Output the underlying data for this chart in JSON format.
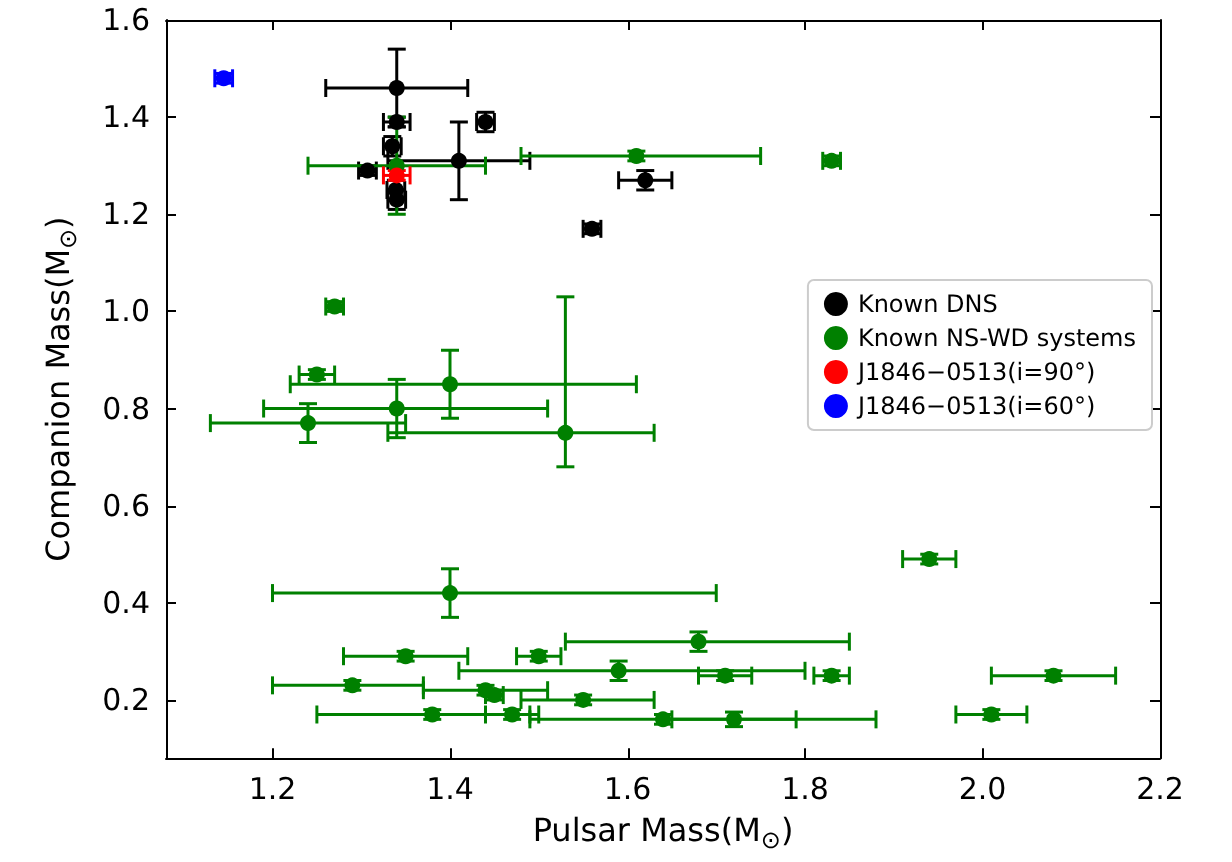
{
  "chart_data": {
    "type": "scatter",
    "xlabel": "Pulsar Mass(M$_{⊙}$)",
    "ylabel": "Companion Mass(M$_{⊙}$)",
    "xlim": [
      1.08,
      2.2
    ],
    "xticks": [
      1.2,
      1.4,
      1.6,
      1.8,
      {
        "value": 2,
        "label": "2.0"
      },
      2.2
    ],
    "ylim": [
      0.08,
      1.6
    ],
    "yticks": [
      0.2,
      0.4,
      0.6,
      0.8,
      {
        "value": 1,
        "label": "1.0"
      },
      1.2,
      1.4,
      1.6
    ],
    "grid": false,
    "legend": "right",
    "marker": "circle",
    "series": [
      {
        "name": "Known DNS",
        "color": "#000000",
        "x": [
          1.34,
          1.34,
          1.335,
          1.307,
          1.41,
          1.44,
          1.339,
          1.34,
          1.62,
          1.56
        ],
        "values": [
          1.46,
          1.39,
          1.34,
          1.29,
          1.31,
          1.39,
          1.25,
          1.23,
          1.27,
          1.17
        ],
        "xerrors": [
          0.08,
          0.015,
          0.01,
          0.01,
          0.08,
          0.01,
          0.01,
          0.01,
          0.03,
          0.01
        ],
        "errors": [
          0.08,
          0.01,
          0.02,
          0.01,
          0.08,
          0.02,
          0.02,
          0.02,
          0.02,
          0.01
        ]
      },
      {
        "name": "Known NS-WD systems",
        "color": "#008000",
        "x": [
          1.61,
          1.83,
          1.34,
          1.27,
          1.25,
          1.4,
          1.34,
          1.24,
          1.53,
          1.4,
          1.68,
          1.35,
          1.5,
          1.59,
          1.71,
          1.83,
          2.08,
          1.94,
          1.29,
          1.44,
          1.45,
          1.55,
          1.47,
          1.38,
          1.64,
          1.72,
          2.01
        ],
        "values": [
          1.32,
          1.31,
          1.3,
          1.01,
          0.87,
          0.85,
          0.8,
          0.77,
          0.75,
          0.42,
          0.32,
          0.29,
          0.29,
          0.26,
          0.25,
          0.25,
          0.25,
          0.49,
          0.23,
          0.22,
          0.21,
          0.2,
          0.17,
          0.17,
          0.16,
          0.16,
          0.17
        ],
        "xerrors": [
          [
            1.48,
            1.75
          ],
          0.01,
          0.1,
          0.01,
          [
            1.23,
            1.27
          ],
          [
            1.22,
            1.61
          ],
          [
            1.19,
            1.51
          ],
          [
            1.13,
            1.35
          ],
          [
            1.33,
            1.63
          ],
          [
            1.2,
            1.7
          ],
          [
            1.53,
            1.85
          ],
          0.07,
          0.025,
          [
            1.41,
            1.8
          ],
          0.03,
          0.02,
          0.07,
          0.03,
          [
            1.2,
            1.37
          ],
          [
            1.37,
            1.51
          ],
          0.01,
          [
            1.48,
            1.63
          ],
          0.03,
          [
            1.25,
            1.49
          ],
          [
            1.49,
            1.88
          ],
          [
            1.65,
            1.79
          ],
          0.04
        ],
        "errors": [
          0.01,
          0.01,
          0.1,
          0.01,
          0.01,
          0.07,
          0.06,
          0.04,
          [
            0.68,
            1.03
          ],
          0.05,
          0.02,
          0.01,
          0.01,
          0.02,
          0.01,
          0.01,
          0.01,
          0.01,
          0.01,
          0.01,
          0.01,
          0.01,
          0.01,
          0.01,
          0.01,
          0.015,
          0.01
        ]
      },
      {
        "name": "J1846−0513(i=90°)",
        "color": "#ff0000",
        "x": [
          1.34
        ],
        "values": [
          1.28
        ],
        "xerrors": [
          0.015
        ],
        "errors": [
          0.01
        ]
      },
      {
        "name": "J1846−0513(i=60°)",
        "color": "#0000ff",
        "x": [
          1.145
        ],
        "values": [
          1.48
        ],
        "xerrors": [
          0.01
        ],
        "errors": [
          0.01
        ]
      }
    ]
  }
}
